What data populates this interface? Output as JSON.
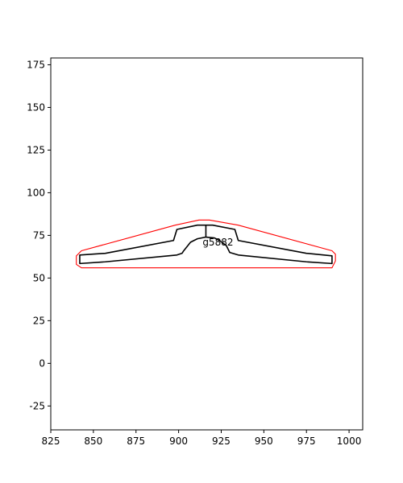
{
  "chart_data": {
    "type": "line",
    "title": "",
    "xlabel": "",
    "ylabel": "",
    "xlim": [
      825,
      1008
    ],
    "ylim": [
      -39,
      179
    ],
    "xticks": [
      825,
      850,
      875,
      900,
      925,
      950,
      975,
      1000
    ],
    "yticks": [
      -25,
      0,
      25,
      50,
      75,
      100,
      125,
      150,
      175
    ],
    "grid": false,
    "series": [
      {
        "color": "#ff0000",
        "closed": true,
        "points": [
          [
            843,
            66
          ],
          [
            898,
            81
          ],
          [
            912,
            84
          ],
          [
            918,
            84
          ],
          [
            935,
            81
          ],
          [
            990,
            66
          ],
          [
            992,
            64
          ],
          [
            992,
            60
          ],
          [
            990,
            56
          ],
          [
            843,
            56
          ],
          [
            840,
            58
          ],
          [
            840,
            63
          ]
        ]
      },
      {
        "color": "#000000",
        "closed": true,
        "points": [
          [
            842,
            63.5
          ],
          [
            857,
            64.5
          ],
          [
            897,
            72
          ],
          [
            899,
            78.5
          ],
          [
            911,
            81
          ],
          [
            920,
            81
          ],
          [
            933,
            78.5
          ],
          [
            935,
            72
          ],
          [
            975,
            64.5
          ],
          [
            990,
            63
          ],
          [
            990,
            58.5
          ],
          [
            975,
            59.5
          ],
          [
            935,
            63.5
          ],
          [
            930,
            65
          ],
          [
            928,
            69
          ],
          [
            924,
            72
          ],
          [
            921,
            73.5
          ],
          [
            916,
            74
          ],
          [
            911,
            73
          ],
          [
            907,
            71
          ],
          [
            903,
            66
          ],
          [
            902,
            64.5
          ],
          [
            899,
            63.5
          ],
          [
            857,
            59.5
          ],
          [
            842,
            58.5
          ]
        ]
      },
      {
        "color": "#000000",
        "closed": false,
        "points": [
          [
            916,
            74
          ],
          [
            916,
            81
          ]
        ]
      }
    ],
    "annotations": [
      {
        "text": "g5882",
        "x": 915,
        "y": 71
      }
    ]
  }
}
